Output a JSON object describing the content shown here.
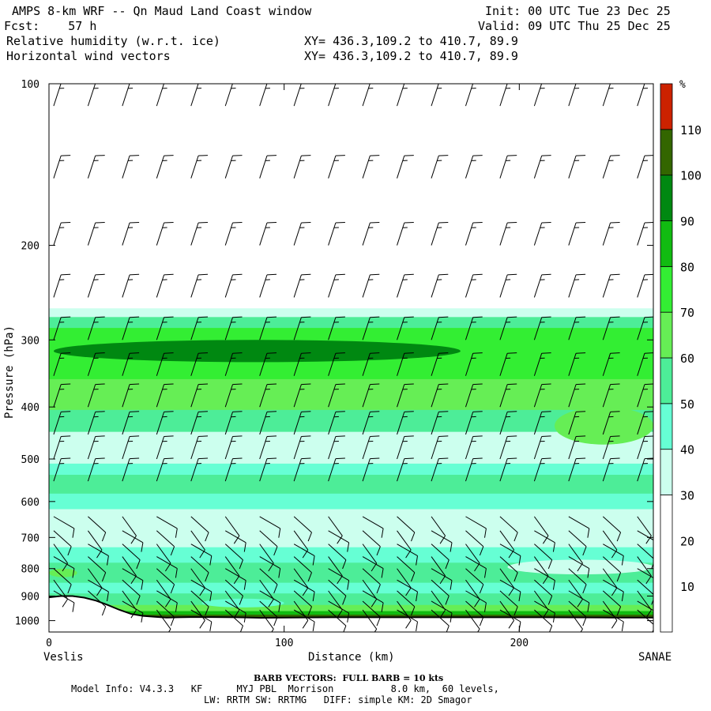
{
  "header": {
    "title": "AMPS 8-km WRF -- Qn Maud Land Coast window",
    "fcst": "Fcst:    57 h",
    "init": "Init: 00 UTC Tue 23 Dec 25",
    "valid": "Valid: 09 UTC Thu 25 Dec 25",
    "field1": "Relative humidity (w.r.t. ice)",
    "field2": "Horizontal wind vectors",
    "xy1": "XY= 436.3,109.2 to 410.7, 89.9",
    "xy2": "XY= 436.3,109.2 to 410.7, 89.9"
  },
  "footer": {
    "barb_note": "BARB VECTORS:  FULL BARB = 10 kts",
    "model_line1": "Model Info: V4.3.3   KF      MYJ PBL  Morrison          8.0 km,  60 levels,",
    "model_line2": "LW: RRTM SW: RRTMG   DIFF: simple KM: 2D Smagor"
  },
  "chart_data": {
    "type": "heatmap",
    "title": "Relative humidity (w.r.t. ice)",
    "xlabel": "Distance (km)",
    "ylabel": "Pressure (hPa)",
    "x_range": [
      0,
      257
    ],
    "y_range": [
      100,
      1050
    ],
    "y_axis": "log-pressure, inverted",
    "x_ticks": [
      0,
      100,
      200
    ],
    "y_ticks": [
      100,
      200,
      300,
      400,
      500,
      600,
      700,
      800,
      900,
      1000
    ],
    "x_endpoints": {
      "left": "Veslis",
      "right": "SANAE"
    },
    "colorbar": {
      "unit": "%",
      "ticks": [
        10,
        20,
        30,
        40,
        50,
        60,
        70,
        80,
        90,
        100,
        110
      ],
      "bins": [
        {
          "range": [
            0,
            30
          ],
          "color": "#ffffff"
        },
        {
          "range": [
            30,
            40
          ],
          "color": "#ccffee"
        },
        {
          "range": [
            40,
            50
          ],
          "color": "#66ffd4"
        },
        {
          "range": [
            50,
            60
          ],
          "color": "#4ded98"
        },
        {
          "range": [
            60,
            70
          ],
          "color": "#66ee55"
        },
        {
          "range": [
            70,
            80
          ],
          "color": "#33ee33"
        },
        {
          "range": [
            80,
            90
          ],
          "color": "#11bb11"
        },
        {
          "range": [
            90,
            100
          ],
          "color": "#008811"
        },
        {
          "range": [
            100,
            110
          ],
          "color": "#336600"
        },
        {
          "range": [
            110,
            120
          ],
          "color": "#cc2200"
        }
      ]
    },
    "rh_layers": [
      {
        "p_top": 100,
        "p_bottom": 262,
        "rh": 0
      },
      {
        "p_top": 262,
        "p_bottom": 272,
        "rh": 35
      },
      {
        "p_top": 272,
        "p_bottom": 285,
        "rh": 55
      },
      {
        "p_top": 285,
        "p_bottom": 355,
        "rh": 75
      },
      {
        "p_top": 355,
        "p_bottom": 405,
        "rh": 65
      },
      {
        "p_top": 405,
        "p_bottom": 445,
        "rh": 55
      },
      {
        "p_top": 445,
        "p_bottom": 510,
        "rh": 35
      },
      {
        "p_top": 510,
        "p_bottom": 535,
        "rh": 45
      },
      {
        "p_top": 535,
        "p_bottom": 580,
        "rh": 55
      },
      {
        "p_top": 580,
        "p_bottom": 620,
        "rh": 45
      },
      {
        "p_top": 620,
        "p_bottom": 730,
        "rh": 35
      },
      {
        "p_top": 730,
        "p_bottom": 780,
        "rh": 45
      },
      {
        "p_top": 780,
        "p_bottom": 850,
        "rh": 55
      },
      {
        "p_top": 850,
        "p_bottom": 890,
        "rh": 45
      },
      {
        "p_top": 890,
        "p_bottom": 935,
        "rh": 55
      },
      {
        "p_top": 935,
        "p_bottom": 960,
        "rh": 65
      },
      {
        "p_top": 960,
        "p_bottom": 975,
        "rh": 85
      },
      {
        "p_top": 975,
        "p_bottom": 995,
        "rh": 105
      }
    ],
    "rh_features": [
      {
        "rh": 95,
        "x": [
          2,
          175
        ],
        "p": [
          300,
          330
        ],
        "note": "upper moist core"
      },
      {
        "rh": 65,
        "x": [
          215,
          257
        ],
        "p": [
          400,
          470
        ]
      },
      {
        "rh": 35,
        "x": [
          40,
          60
        ],
        "p": [
          465,
          500
        ]
      },
      {
        "rh": 35,
        "x": [
          195,
          257
        ],
        "p": [
          770,
          820
        ]
      },
      {
        "rh": 45,
        "x": [
          65,
          100
        ],
        "p": [
          910,
          945
        ]
      },
      {
        "rh": 65,
        "x": [
          0,
          12
        ],
        "p": [
          800,
          830
        ]
      }
    ],
    "terrain": {
      "x": [
        0,
        5,
        10,
        15,
        20,
        25,
        30,
        35,
        40,
        45,
        50,
        55,
        60,
        70,
        80,
        90,
        100,
        120,
        150,
        180,
        210,
        240,
        257
      ],
      "p": [
        905,
        900,
        900,
        906,
        918,
        935,
        955,
        972,
        980,
        984,
        987,
        986,
        985,
        985,
        986,
        988,
        987,
        986,
        986,
        986,
        986,
        987,
        987
      ]
    },
    "wind_barbs": {
      "upper_layer_p": [
        100,
        600
      ],
      "upper_direction": "northwesterly, near-vertical shafts",
      "upper_speed_kts": 15,
      "lower_layer_p": [
        620,
        990
      ],
      "lower_direction": "easterly / southeasterly",
      "lower_speed_kts": 10
    }
  }
}
